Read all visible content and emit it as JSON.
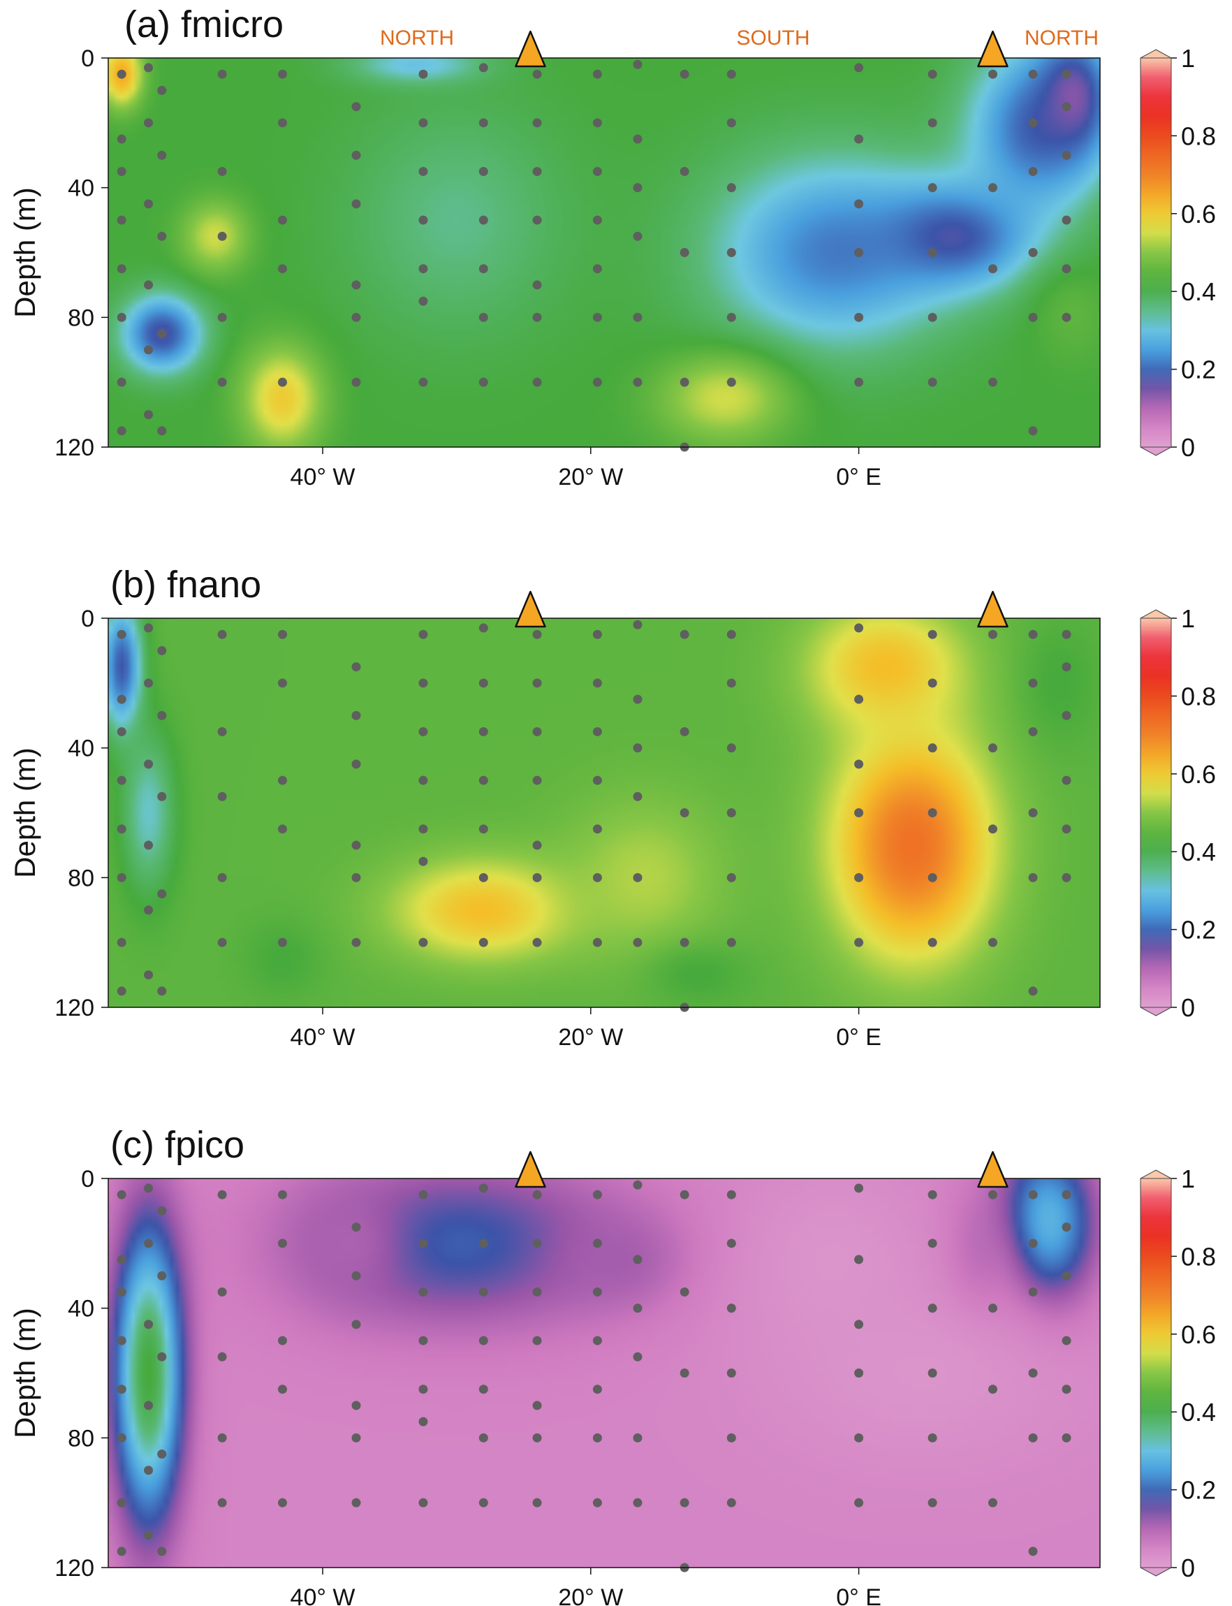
{
  "chart_data": [
    {
      "type": "heatmap",
      "title": "(a) fmicro",
      "ylabel": "Depth (m)",
      "yticks": [
        "0",
        "40",
        "80",
        "120"
      ],
      "xticks": [
        "40° W",
        "20° W",
        "0° E"
      ],
      "ylim": [
        0,
        120
      ],
      "xlim_deg": [
        -56,
        18
      ],
      "direction_labels": [
        "NORTH",
        "SOUTH",
        "NORTH"
      ],
      "colorbar": {
        "ticks": [
          "0",
          "0.2",
          "0.4",
          "0.6",
          "0.8",
          "1"
        ],
        "range": [
          0,
          1
        ]
      },
      "background_value": 0.42,
      "blobs": [
        {
          "lon": -2,
          "depth": 60,
          "sx": 9,
          "sy": 30,
          "value": 0.22
        },
        {
          "lon": 7,
          "depth": 55,
          "sx": 6,
          "sy": 16,
          "value": 0.17
        },
        {
          "lon": 13,
          "depth": 22,
          "sx": 5,
          "sy": 26,
          "value": 0.2
        },
        {
          "lon": 16,
          "depth": 12,
          "sx": 3,
          "sy": 20,
          "value": 0.14
        },
        {
          "lon": 16,
          "depth": 80,
          "sx": 3,
          "sy": 15,
          "value": 0.45
        },
        {
          "lon": -52,
          "depth": 85,
          "sx": 3,
          "sy": 12,
          "value": 0.17
        },
        {
          "lon": -55,
          "depth": 5,
          "sx": 1.5,
          "sy": 10,
          "value": 0.65
        },
        {
          "lon": -43,
          "depth": 105,
          "sx": 3,
          "sy": 16,
          "value": 0.6
        },
        {
          "lon": -10,
          "depth": 105,
          "sx": 5,
          "sy": 14,
          "value": 0.55
        },
        {
          "lon": -48,
          "depth": 55,
          "sx": 2.5,
          "sy": 11,
          "value": 0.55
        },
        {
          "lon": -30,
          "depth": 50,
          "sx": 8,
          "sy": 35,
          "value": 0.35
        },
        {
          "lon": -33,
          "depth": 2,
          "sx": 5,
          "sy": 6,
          "value": 0.3
        }
      ],
      "stations": [
        {
          "lon": -55,
          "depths": [
            5,
            25,
            35,
            50,
            65,
            80,
            100,
            115
          ]
        },
        {
          "lon": -53,
          "depths": [
            3,
            20,
            45,
            70,
            90,
            110
          ]
        },
        {
          "lon": -52,
          "depths": [
            10,
            30,
            55,
            85,
            115
          ]
        },
        {
          "lon": -47.5,
          "depths": [
            5,
            35,
            55,
            80,
            100
          ]
        },
        {
          "lon": -43,
          "depths": [
            5,
            20,
            50,
            65,
            100
          ]
        },
        {
          "lon": -37.5,
          "depths": [
            15,
            30,
            45,
            70,
            80,
            100
          ]
        },
        {
          "lon": -32.5,
          "depths": [
            5,
            20,
            35,
            50,
            65,
            75,
            100
          ]
        },
        {
          "lon": -28,
          "depths": [
            3,
            20,
            35,
            50,
            65,
            80,
            100
          ]
        },
        {
          "lon": -24,
          "depths": [
            5,
            20,
            35,
            50,
            70,
            80,
            100
          ]
        },
        {
          "lon": -19.5,
          "depths": [
            5,
            20,
            35,
            50,
            65,
            80,
            100
          ]
        },
        {
          "lon": -16.5,
          "depths": [
            2,
            25,
            40,
            55,
            80,
            100
          ]
        },
        {
          "lon": -13,
          "depths": [
            5,
            35,
            60,
            100,
            120
          ]
        },
        {
          "lon": -9.5,
          "depths": [
            5,
            20,
            40,
            60,
            80,
            100
          ]
        },
        {
          "lon": 0,
          "depths": [
            3,
            25,
            45,
            60,
            80,
            100
          ]
        },
        {
          "lon": 5.5,
          "depths": [
            5,
            20,
            40,
            60,
            80,
            100
          ]
        },
        {
          "lon": 10,
          "depths": [
            5,
            40,
            65,
            100
          ]
        },
        {
          "lon": 13,
          "depths": [
            5,
            20,
            35,
            60,
            80,
            115
          ]
        },
        {
          "lon": 15.5,
          "depths": [
            5,
            15,
            30,
            50,
            65,
            80
          ]
        }
      ]
    },
    {
      "type": "heatmap",
      "title": "(b) fnano",
      "ylabel": "Depth (m)",
      "yticks": [
        "0",
        "40",
        "80",
        "120"
      ],
      "xticks": [
        "40° W",
        "20° W",
        "0° E"
      ],
      "ylim": [
        0,
        120
      ],
      "xlim_deg": [
        -56,
        18
      ],
      "colorbar": {
        "ticks": [
          "0",
          "0.2",
          "0.4",
          "0.6",
          "0.8",
          "1"
        ],
        "range": [
          0,
          1
        ]
      },
      "background_value": 0.45,
      "blobs": [
        {
          "lon": 4,
          "depth": 70,
          "sx": 6,
          "sy": 35,
          "value": 0.73
        },
        {
          "lon": 2,
          "depth": 15,
          "sx": 6,
          "sy": 20,
          "value": 0.62
        },
        {
          "lon": -28,
          "depth": 90,
          "sx": 7,
          "sy": 16,
          "value": 0.62
        },
        {
          "lon": -16,
          "depth": 80,
          "sx": 6,
          "sy": 25,
          "value": 0.53
        },
        {
          "lon": -55,
          "depth": 15,
          "sx": 1.5,
          "sy": 20,
          "value": 0.18
        },
        {
          "lon": -53,
          "depth": 60,
          "sx": 2,
          "sy": 25,
          "value": 0.32
        },
        {
          "lon": 15,
          "depth": 20,
          "sx": 3,
          "sy": 20,
          "value": 0.42
        },
        {
          "lon": -43,
          "depth": 105,
          "sx": 3,
          "sy": 12,
          "value": 0.42
        },
        {
          "lon": -12,
          "depth": 110,
          "sx": 4,
          "sy": 10,
          "value": 0.42
        }
      ],
      "stations": [
        {
          "lon": -55,
          "depths": [
            5,
            25,
            35,
            50,
            65,
            80,
            100,
            115
          ]
        },
        {
          "lon": -53,
          "depths": [
            3,
            20,
            45,
            70,
            90,
            110
          ]
        },
        {
          "lon": -52,
          "depths": [
            10,
            30,
            55,
            85,
            115
          ]
        },
        {
          "lon": -47.5,
          "depths": [
            5,
            35,
            55,
            80,
            100
          ]
        },
        {
          "lon": -43,
          "depths": [
            5,
            20,
            50,
            65,
            100
          ]
        },
        {
          "lon": -37.5,
          "depths": [
            15,
            30,
            45,
            70,
            80,
            100
          ]
        },
        {
          "lon": -32.5,
          "depths": [
            5,
            20,
            35,
            50,
            65,
            75,
            100
          ]
        },
        {
          "lon": -28,
          "depths": [
            3,
            20,
            35,
            50,
            65,
            80,
            100
          ]
        },
        {
          "lon": -24,
          "depths": [
            5,
            20,
            35,
            50,
            70,
            80,
            100
          ]
        },
        {
          "lon": -19.5,
          "depths": [
            5,
            20,
            35,
            50,
            65,
            80,
            100
          ]
        },
        {
          "lon": -16.5,
          "depths": [
            2,
            25,
            40,
            55,
            80,
            100
          ]
        },
        {
          "lon": -13,
          "depths": [
            5,
            35,
            60,
            100,
            120
          ]
        },
        {
          "lon": -9.5,
          "depths": [
            5,
            20,
            40,
            60,
            80,
            100
          ]
        },
        {
          "lon": 0,
          "depths": [
            3,
            25,
            45,
            60,
            80,
            100
          ]
        },
        {
          "lon": 5.5,
          "depths": [
            5,
            20,
            40,
            60,
            80,
            100
          ]
        },
        {
          "lon": 10,
          "depths": [
            5,
            40,
            65,
            100
          ]
        },
        {
          "lon": 13,
          "depths": [
            5,
            20,
            35,
            60,
            80,
            115
          ]
        },
        {
          "lon": 15.5,
          "depths": [
            5,
            15,
            30,
            50,
            65,
            80
          ]
        }
      ]
    },
    {
      "type": "heatmap",
      "title": "(c) fpico",
      "ylabel": "Depth (m)",
      "yticks": [
        "0",
        "40",
        "80",
        "120"
      ],
      "xticks": [
        "40° W",
        "20° W",
        "0° E"
      ],
      "ylim": [
        0,
        120
      ],
      "xlim_deg": [
        -56,
        18
      ],
      "colorbar": {
        "ticks": [
          "0",
          "0.2",
          "0.4",
          "0.6",
          "0.8",
          "1"
        ],
        "range": [
          0,
          1
        ]
      },
      "background_value": 0.05,
      "blobs": [
        {
          "lon": -30,
          "depth": 20,
          "sx": 12,
          "sy": 25,
          "value": 0.19
        },
        {
          "lon": -38,
          "depth": 20,
          "sx": 4,
          "sy": 18,
          "value": 0.11
        },
        {
          "lon": -18,
          "depth": 25,
          "sx": 5,
          "sy": 15,
          "value": 0.12
        },
        {
          "lon": -53,
          "depth": 60,
          "sx": 2.5,
          "sy": 45,
          "value": 0.42
        },
        {
          "lon": 14,
          "depth": 15,
          "sx": 3.5,
          "sy": 25,
          "value": 0.3
        },
        {
          "lon": 9,
          "depth": 30,
          "sx": 3,
          "sy": 25,
          "value": 0.12
        },
        {
          "lon": -2,
          "depth": 25,
          "sx": 7,
          "sy": 30,
          "value": 0.02
        },
        {
          "lon": 5,
          "depth": 60,
          "sx": 12,
          "sy": 30,
          "value": 0.02
        }
      ],
      "stations": [
        {
          "lon": -55,
          "depths": [
            5,
            25,
            35,
            50,
            65,
            80,
            100,
            115
          ]
        },
        {
          "lon": -53,
          "depths": [
            3,
            20,
            45,
            70,
            90,
            110
          ]
        },
        {
          "lon": -52,
          "depths": [
            10,
            30,
            55,
            85,
            115
          ]
        },
        {
          "lon": -47.5,
          "depths": [
            5,
            35,
            55,
            80,
            100
          ]
        },
        {
          "lon": -43,
          "depths": [
            5,
            20,
            50,
            65,
            100
          ]
        },
        {
          "lon": -37.5,
          "depths": [
            15,
            30,
            45,
            70,
            80,
            100
          ]
        },
        {
          "lon": -32.5,
          "depths": [
            5,
            20,
            35,
            50,
            65,
            75,
            100
          ]
        },
        {
          "lon": -28,
          "depths": [
            3,
            20,
            35,
            50,
            65,
            80,
            100
          ]
        },
        {
          "lon": -24,
          "depths": [
            5,
            20,
            35,
            50,
            70,
            80,
            100
          ]
        },
        {
          "lon": -19.5,
          "depths": [
            5,
            20,
            35,
            50,
            65,
            80,
            100
          ]
        },
        {
          "lon": -16.5,
          "depths": [
            2,
            25,
            40,
            55,
            80,
            100
          ]
        },
        {
          "lon": -13,
          "depths": [
            5,
            35,
            60,
            100,
            120
          ]
        },
        {
          "lon": -9.5,
          "depths": [
            5,
            20,
            40,
            60,
            80,
            100
          ]
        },
        {
          "lon": 0,
          "depths": [
            3,
            25,
            45,
            60,
            80,
            100
          ]
        },
        {
          "lon": 5.5,
          "depths": [
            5,
            20,
            40,
            60,
            80,
            100
          ]
        },
        {
          "lon": 10,
          "depths": [
            5,
            40,
            65,
            100
          ]
        },
        {
          "lon": 13,
          "depths": [
            5,
            20,
            35,
            60,
            80,
            115
          ]
        },
        {
          "lon": 15.5,
          "depths": [
            5,
            15,
            30,
            50,
            65,
            80
          ]
        }
      ]
    }
  ],
  "colors": {
    "triangle_fill": "#f5a623",
    "triangle_stroke": "#111111",
    "station_dot": "#5f5f5f",
    "direction_label": "#e06a1b"
  },
  "markers": {
    "triangle_lons": [
      -24.5,
      10
    ]
  }
}
